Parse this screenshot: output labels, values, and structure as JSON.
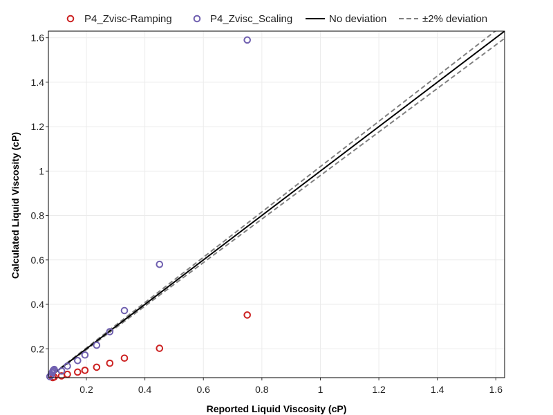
{
  "chart_data": {
    "type": "scatter",
    "xlabel": "Reported Liquid Viscosity (cP)",
    "ylabel": "Calculated Liquid Viscosity (cP)",
    "xlim": [
      0.07,
      1.63
    ],
    "ylim": [
      0.07,
      1.63
    ],
    "x_ticks": [
      0.2,
      0.4,
      0.6,
      0.8,
      1.0,
      1.2,
      1.4,
      1.6
    ],
    "y_ticks": [
      0.2,
      0.4,
      0.6,
      0.8,
      1.0,
      1.2,
      1.4,
      1.6
    ],
    "x_tick_labels": [
      "0.2",
      "0.4",
      "0.6",
      "0.8",
      "1",
      "1.2",
      "1.4",
      "1.6"
    ],
    "y_tick_labels": [
      "0.2",
      "0.4",
      "0.6",
      "0.8",
      "1",
      "1.2",
      "1.4",
      "1.6"
    ],
    "grid": true,
    "legend_position": "top",
    "series": [
      {
        "name": "P4_Zvisc-Ramping",
        "marker": "open-circle",
        "color": "#cc2222",
        "points": [
          [
            0.085,
            0.07
          ],
          [
            0.09,
            0.073
          ],
          [
            0.115,
            0.078
          ],
          [
            0.135,
            0.085
          ],
          [
            0.17,
            0.095
          ],
          [
            0.195,
            0.103
          ],
          [
            0.235,
            0.117
          ],
          [
            0.28,
            0.135
          ],
          [
            0.33,
            0.158
          ],
          [
            0.45,
            0.202
          ],
          [
            0.75,
            0.352
          ]
        ]
      },
      {
        "name": "P4_Zvisc_Scaling",
        "marker": "open-circle",
        "color": "#7060b0",
        "points": [
          [
            0.075,
            0.075
          ],
          [
            0.08,
            0.083
          ],
          [
            0.083,
            0.092
          ],
          [
            0.085,
            0.098
          ],
          [
            0.087,
            0.103
          ],
          [
            0.09,
            0.107
          ],
          [
            0.115,
            0.1
          ],
          [
            0.135,
            0.122
          ],
          [
            0.17,
            0.147
          ],
          [
            0.195,
            0.172
          ],
          [
            0.235,
            0.216
          ],
          [
            0.28,
            0.277
          ],
          [
            0.33,
            0.372
          ],
          [
            0.45,
            0.58
          ],
          [
            0.75,
            1.59
          ]
        ]
      }
    ],
    "reference_lines": [
      {
        "name": "No deviation",
        "style": "solid",
        "color": "#000000",
        "slope": 1.0
      },
      {
        "name": "±2% deviation",
        "style": "dashed",
        "color": "#808080",
        "slopes": [
          1.02,
          0.98
        ]
      }
    ]
  }
}
